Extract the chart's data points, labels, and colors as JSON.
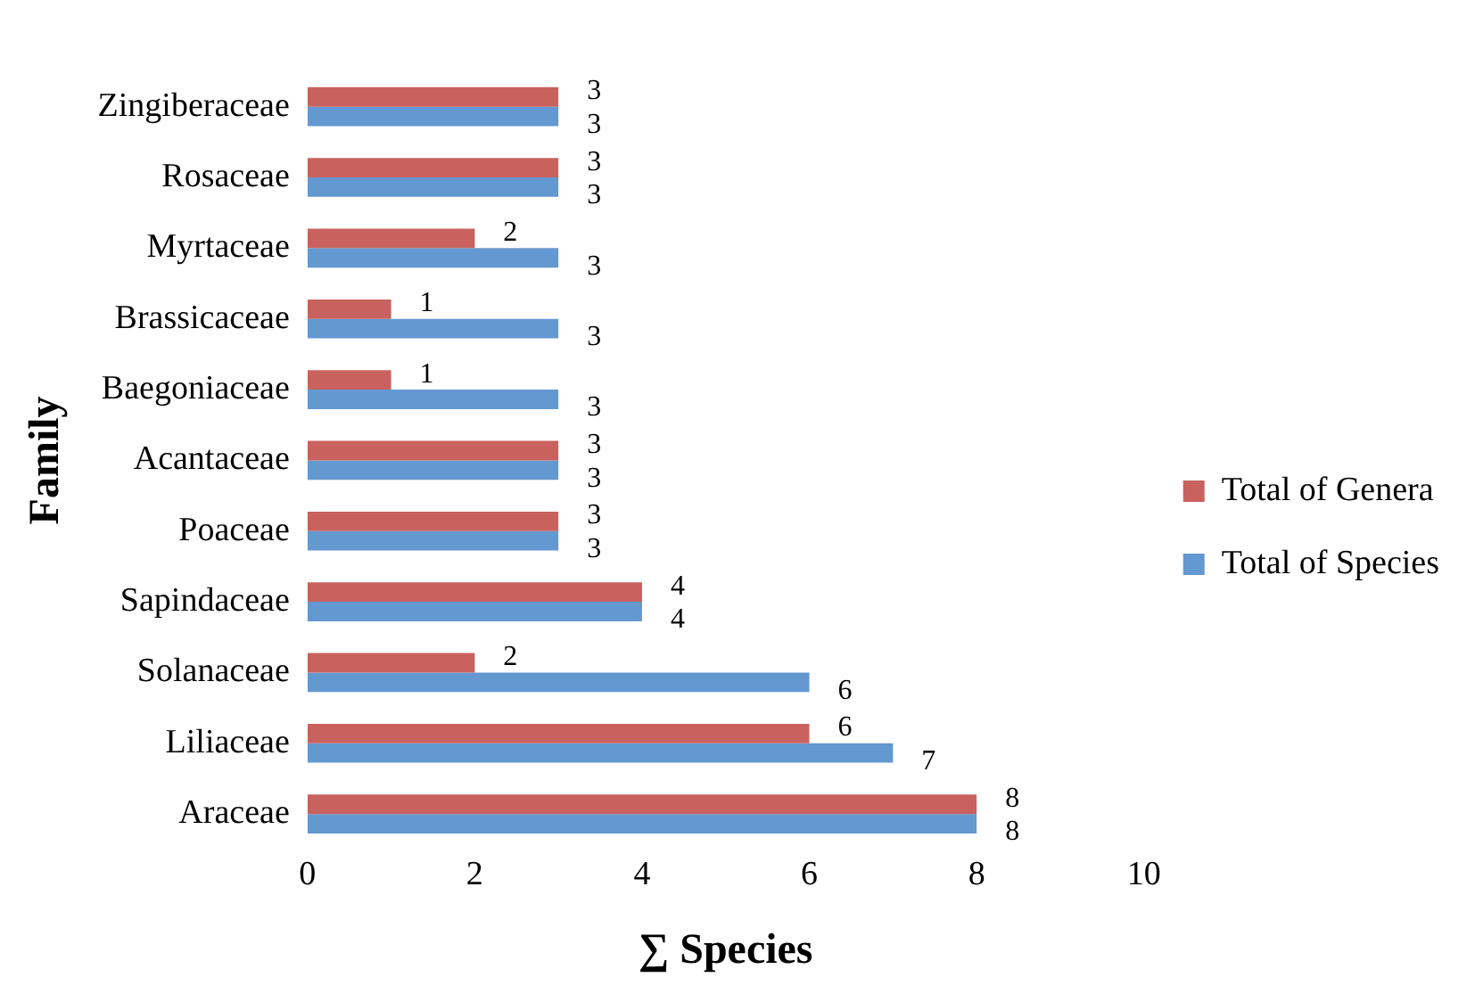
{
  "chart_data": {
    "type": "bar",
    "orientation": "horizontal",
    "xlabel": "∑ Species",
    "ylabel": "Family",
    "categories": [
      "Zingiberaceae",
      "Rosaceae",
      "Myrtaceae",
      "Brassicaceae",
      "Baegoniaceae",
      "Acantaceae",
      "Poaceae",
      "Sapindaceae",
      "Solanaceae",
      "Liliaceae",
      "Araceae"
    ],
    "series": [
      {
        "name": "Total of Genera",
        "color": "#c9625e",
        "values": [
          3,
          3,
          2,
          1,
          1,
          3,
          3,
          4,
          2,
          6,
          8
        ]
      },
      {
        "name": "Total of Species",
        "color": "#6398d0",
        "values": [
          3,
          3,
          3,
          3,
          3,
          3,
          3,
          4,
          6,
          7,
          8
        ]
      }
    ],
    "xlim": [
      0,
      10
    ],
    "xticks": [
      0,
      2,
      4,
      6,
      8,
      10
    ],
    "grid": false,
    "legend": "right",
    "data_labels": true
  }
}
